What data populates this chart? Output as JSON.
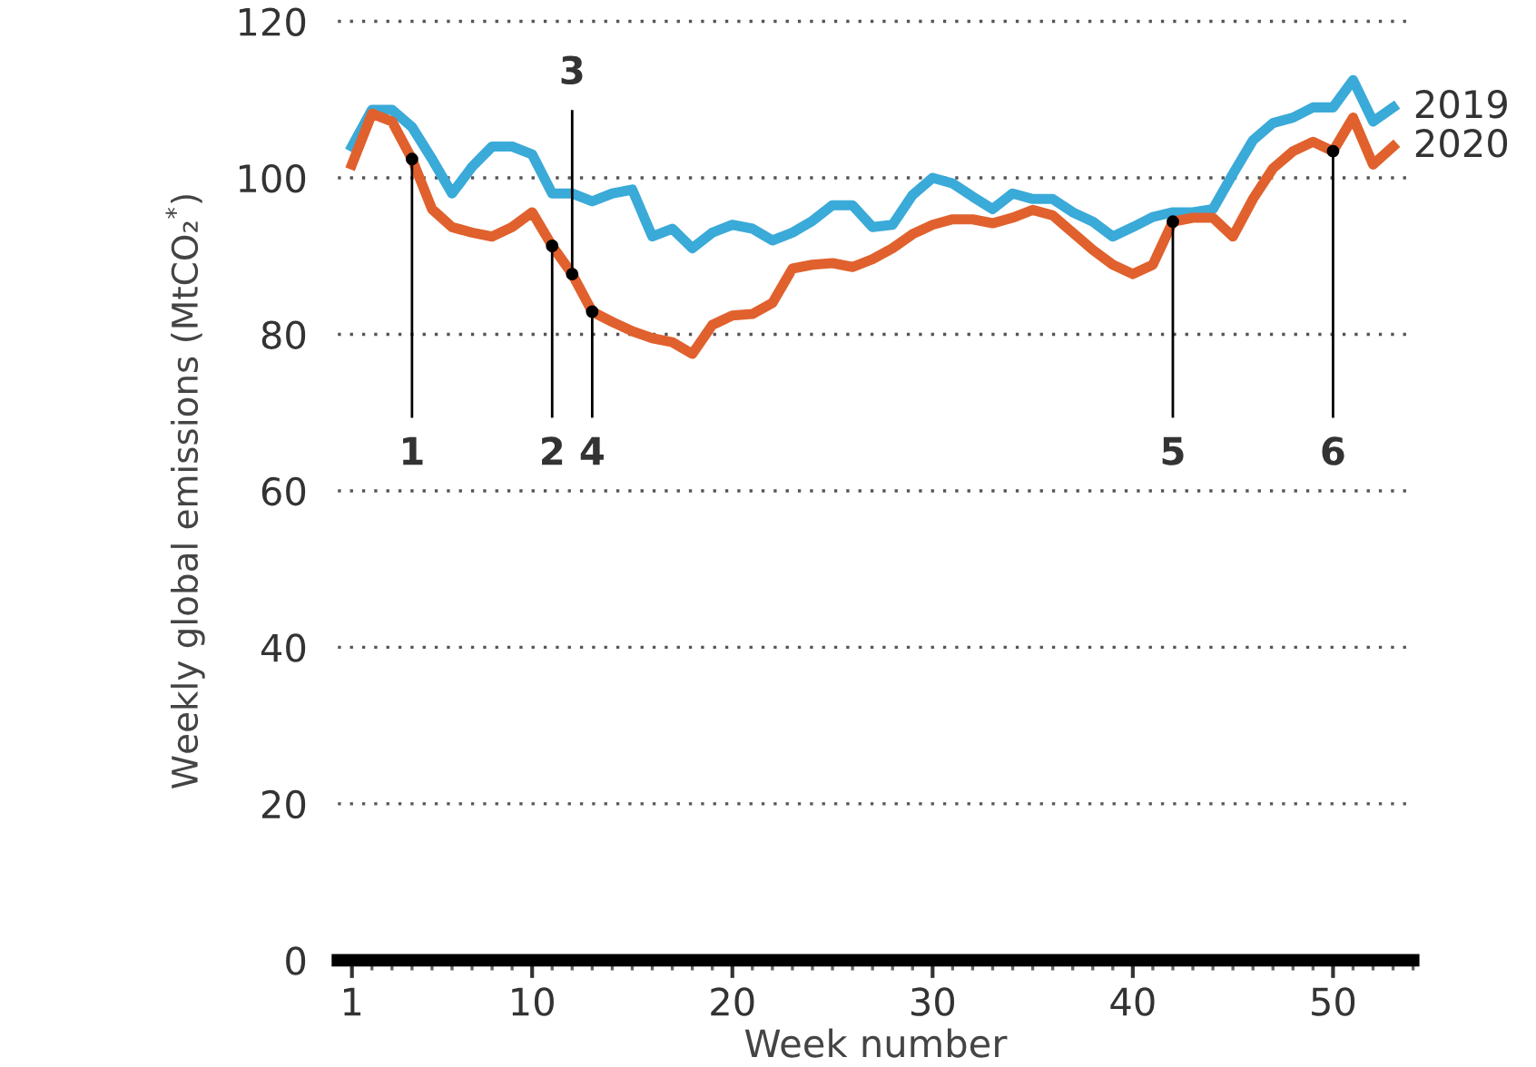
{
  "chart_data": {
    "type": "line",
    "xlabel": "Week number",
    "ylabel": "Weekly global emissions (MtCO₂$^{*}$)",
    "x": [
      1,
      2,
      3,
      4,
      5,
      6,
      7,
      8,
      9,
      10,
      11,
      12,
      13,
      14,
      15,
      16,
      17,
      18,
      19,
      20,
      21,
      22,
      23,
      24,
      25,
      26,
      27,
      28,
      29,
      30,
      31,
      32,
      33,
      34,
      35,
      36,
      37,
      38,
      39,
      40,
      41,
      42,
      43,
      44,
      45,
      46,
      47,
      48,
      49,
      50,
      51,
      52,
      53
    ],
    "series": [
      {
        "name": "2019",
        "color": "#3aaad8",
        "values": [
          104,
          108.7,
          108.7,
          106.5,
          102.4,
          98,
          101.4,
          104,
          104,
          103,
          98,
          98,
          97,
          98,
          98.5,
          92.5,
          93.5,
          91,
          93,
          94,
          93.5,
          92,
          93,
          94.5,
          96.5,
          96.5,
          93.7,
          94,
          97.8,
          100,
          99.3,
          97.6,
          96,
          98,
          97.3,
          97.3,
          95.6,
          94.4,
          92.5,
          93.7,
          95,
          95.6,
          95.6,
          96,
          100.5,
          104.8,
          107,
          107.7,
          109,
          109,
          112.5,
          107.2,
          109
        ]
      },
      {
        "name": "2020",
        "color": "#e0612d",
        "values": [
          101.7,
          108.2,
          107.2,
          102.4,
          96,
          93.7,
          93,
          92.5,
          93.7,
          95.6,
          91.3,
          87.7,
          82.9,
          81.6,
          80.4,
          79.5,
          79,
          77.5,
          81.2,
          82.4,
          82.6,
          84,
          88.4,
          88.9,
          89.1,
          88.6,
          89.6,
          91,
          92.8,
          94,
          94.7,
          94.7,
          94.2,
          94.9,
          95.9,
          95.2,
          93,
          90.8,
          88.9,
          87.7,
          88.9,
          94.4,
          94.9,
          94.9,
          92.5,
          97.3,
          101.2,
          103.4,
          104.6,
          103.4,
          107.7,
          101.7,
          104
        ]
      }
    ],
    "annotations": [
      {
        "text": "1",
        "x": 4,
        "y": 102.4
      },
      {
        "text": "2",
        "x": 11,
        "y": 91.3
      },
      {
        "text": "3",
        "x": 12,
        "y": 87.7
      },
      {
        "text": "4",
        "x": 13,
        "y": 82.9
      },
      {
        "text": "5",
        "x": 42,
        "y": 94.4
      },
      {
        "text": "6",
        "x": 50,
        "y": 103.4
      }
    ],
    "xlim": [
      0.3,
      54
    ],
    "xticks": [
      1,
      10,
      20,
      30,
      40,
      50
    ],
    "ylim": [
      0,
      120
    ],
    "yticks": [
      0,
      20,
      40,
      60,
      80,
      100,
      120
    ],
    "grid": "y",
    "legend": false,
    "marker": "none",
    "line_style": "solid"
  }
}
